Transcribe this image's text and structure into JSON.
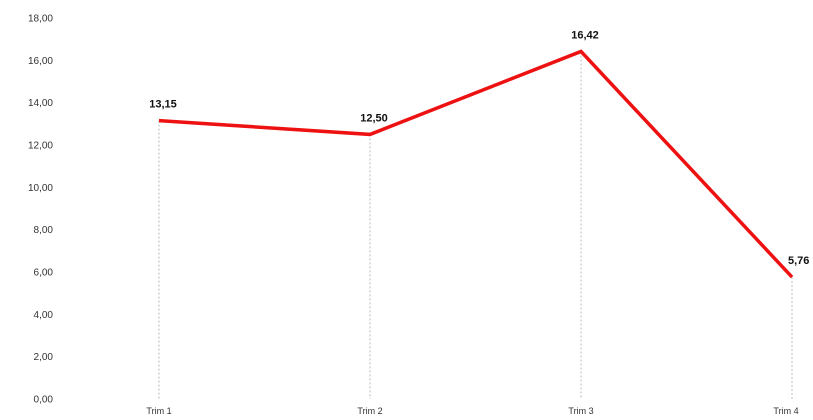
{
  "chart_data": {
    "type": "line",
    "title": "",
    "xlabel": "",
    "ylabel": "",
    "categories": [
      "Trim 1",
      "Trim 2",
      "Trim 3",
      "Trim 4"
    ],
    "series": [
      {
        "values": [
          13.15,
          12.5,
          16.42,
          5.76
        ],
        "data_labels": [
          "13,15",
          "12,50",
          "16,42",
          "5,76"
        ],
        "color": "#ee1111"
      }
    ],
    "ylim": [
      0,
      18
    ],
    "y_ticks": [
      0,
      2,
      4,
      6,
      8,
      10,
      12,
      14,
      16,
      18
    ],
    "y_tick_labels": [
      "0,00",
      "2,00",
      "4,00",
      "6,00",
      "8,00",
      "10,00",
      "12,00",
      "14,00",
      "16,00",
      "18,00"
    ],
    "grid": false,
    "drop_lines": true,
    "drop_line_color": "#bbbbbb",
    "legend": "none"
  }
}
